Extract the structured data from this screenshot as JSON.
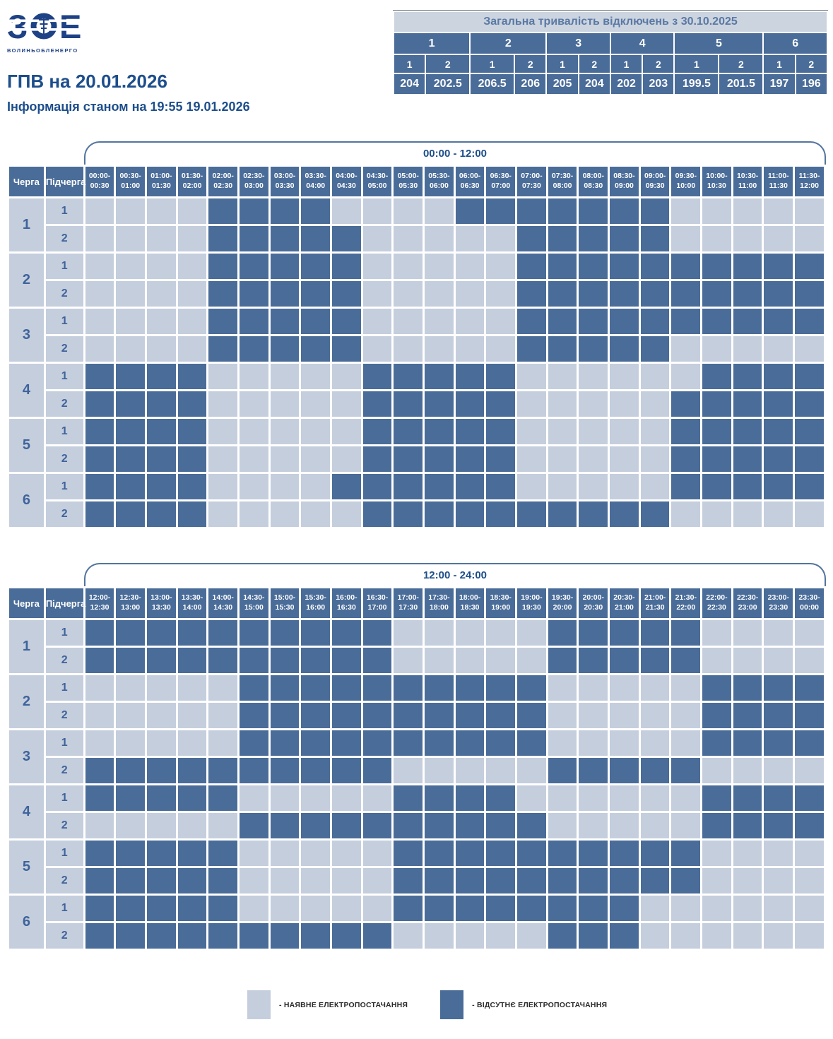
{
  "logo": {
    "acronym": "ЗОЕ",
    "company": "ВОЛИНЬОБЛЕНЕРГО"
  },
  "page": {
    "title": "ГПВ на 20.01.2026",
    "subtitle": "Інформація станом на 19:55 19.01.2026"
  },
  "legend": {
    "available": "- НАЯВНЕ ЕЛЕКТРОПОСТАЧАННЯ",
    "absent": "- ВІДСУТНЄ ЕЛЕКТРОПОСТАЧАННЯ"
  },
  "colors": {
    "power_on": "#c5cedd",
    "power_off": "#4a6c98",
    "header_bg": "#4a6c98",
    "accent_text": "#1d4e89",
    "summary_title_bg": "#ccd4df",
    "summary_title_text": "#5a79a4",
    "logo_blue": "#1e4286"
  },
  "chart_data": [
    {
      "type": "heatmap",
      "title": "00:00 - 12:00",
      "corner": [
        "Черга",
        "Підчерга"
      ],
      "x_labels": [
        "00:00-00:30",
        "00:30-01:00",
        "01:00-01:30",
        "01:30-02:00",
        "02:00-02:30",
        "02:30-03:00",
        "03:00-03:30",
        "03:30-04:00",
        "04:00-04:30",
        "04:30-05:00",
        "05:00-05:30",
        "05:30-06:00",
        "06:00-06:30",
        "06:30-07:00",
        "07:00-07:30",
        "07:30-08:00",
        "08:00-08:30",
        "08:30-09:00",
        "09:00-09:30",
        "09:30-10:00",
        "10:00-10:30",
        "10:30-11:00",
        "11:00-11:30",
        "11:30-12:00"
      ],
      "value_meaning": {
        "0": "наявне електропостачання",
        "1": "відсутнє електропостачання"
      },
      "rows": [
        {
          "queue": "1",
          "subqueue": "1",
          "outage": [
            0,
            0,
            0,
            0,
            1,
            1,
            1,
            1,
            0,
            0,
            0,
            0,
            1,
            1,
            1,
            1,
            1,
            1,
            1,
            0,
            0,
            0,
            0,
            0
          ]
        },
        {
          "queue": "1",
          "subqueue": "2",
          "outage": [
            0,
            0,
            0,
            0,
            1,
            1,
            1,
            1,
            1,
            0,
            0,
            0,
            0,
            0,
            1,
            1,
            1,
            1,
            1,
            0,
            0,
            0,
            0,
            0
          ]
        },
        {
          "queue": "2",
          "subqueue": "1",
          "outage": [
            0,
            0,
            0,
            0,
            1,
            1,
            1,
            1,
            1,
            0,
            0,
            0,
            0,
            0,
            1,
            1,
            1,
            1,
            1,
            1,
            1,
            1,
            1,
            1
          ]
        },
        {
          "queue": "2",
          "subqueue": "2",
          "outage": [
            0,
            0,
            0,
            0,
            1,
            1,
            1,
            1,
            1,
            0,
            0,
            0,
            0,
            0,
            1,
            1,
            1,
            1,
            1,
            1,
            1,
            1,
            1,
            1
          ]
        },
        {
          "queue": "3",
          "subqueue": "1",
          "outage": [
            0,
            0,
            0,
            0,
            1,
            1,
            1,
            1,
            1,
            0,
            0,
            0,
            0,
            0,
            1,
            1,
            1,
            1,
            1,
            1,
            1,
            1,
            1,
            1
          ]
        },
        {
          "queue": "3",
          "subqueue": "2",
          "outage": [
            0,
            0,
            0,
            0,
            1,
            1,
            1,
            1,
            1,
            0,
            0,
            0,
            0,
            0,
            1,
            1,
            1,
            1,
            1,
            0,
            0,
            0,
            0,
            0
          ]
        },
        {
          "queue": "4",
          "subqueue": "1",
          "outage": [
            1,
            1,
            1,
            1,
            0,
            0,
            0,
            0,
            0,
            1,
            1,
            1,
            1,
            1,
            0,
            0,
            0,
            0,
            0,
            0,
            1,
            1,
            1,
            1
          ]
        },
        {
          "queue": "4",
          "subqueue": "2",
          "outage": [
            1,
            1,
            1,
            1,
            0,
            0,
            0,
            0,
            0,
            1,
            1,
            1,
            1,
            1,
            0,
            0,
            0,
            0,
            0,
            1,
            1,
            1,
            1,
            1
          ]
        },
        {
          "queue": "5",
          "subqueue": "1",
          "outage": [
            1,
            1,
            1,
            1,
            0,
            0,
            0,
            0,
            0,
            1,
            1,
            1,
            1,
            1,
            0,
            0,
            0,
            0,
            0,
            1,
            1,
            1,
            1,
            1
          ]
        },
        {
          "queue": "5",
          "subqueue": "2",
          "outage": [
            1,
            1,
            1,
            1,
            0,
            0,
            0,
            0,
            0,
            1,
            1,
            1,
            1,
            1,
            0,
            0,
            0,
            0,
            0,
            1,
            1,
            1,
            1,
            1
          ]
        },
        {
          "queue": "6",
          "subqueue": "1",
          "outage": [
            1,
            1,
            1,
            1,
            0,
            0,
            0,
            0,
            1,
            1,
            1,
            1,
            1,
            1,
            0,
            0,
            0,
            0,
            0,
            1,
            1,
            1,
            1,
            1
          ]
        },
        {
          "queue": "6",
          "subqueue": "2",
          "outage": [
            1,
            1,
            1,
            1,
            0,
            0,
            0,
            0,
            0,
            1,
            1,
            1,
            1,
            1,
            1,
            1,
            1,
            1,
            1,
            0,
            0,
            0,
            0,
            0
          ]
        }
      ]
    },
    {
      "type": "heatmap",
      "title": "12:00 - 24:00",
      "corner": [
        "Черга",
        "Підчерга"
      ],
      "x_labels": [
        "12:00-12:30",
        "12:30-13:00",
        "13:00-13:30",
        "13:30-14:00",
        "14:00-14:30",
        "14:30-15:00",
        "15:00-15:30",
        "15:30-16:00",
        "16:00-16:30",
        "16:30-17:00",
        "17:00-17:30",
        "17:30-18:00",
        "18:00-18:30",
        "18:30-19:00",
        "19:00-19:30",
        "19:30-20:00",
        "20:00-20:30",
        "20:30-21:00",
        "21:00-21:30",
        "21:30-22:00",
        "22:00-22:30",
        "22:30-23:00",
        "23:00-23:30",
        "23:30-00:00"
      ],
      "value_meaning": {
        "0": "наявне електропостачання",
        "1": "відсутнє електропостачання"
      },
      "rows": [
        {
          "queue": "1",
          "subqueue": "1",
          "outage": [
            1,
            1,
            1,
            1,
            1,
            1,
            1,
            1,
            1,
            1,
            0,
            0,
            0,
            0,
            0,
            1,
            1,
            1,
            1,
            1,
            0,
            0,
            0,
            0
          ]
        },
        {
          "queue": "1",
          "subqueue": "2",
          "outage": [
            1,
            1,
            1,
            1,
            1,
            1,
            1,
            1,
            1,
            1,
            0,
            0,
            0,
            0,
            0,
            1,
            1,
            1,
            1,
            1,
            0,
            0,
            0,
            0
          ]
        },
        {
          "queue": "2",
          "subqueue": "1",
          "outage": [
            0,
            0,
            0,
            0,
            0,
            1,
            1,
            1,
            1,
            1,
            1,
            1,
            1,
            1,
            1,
            0,
            0,
            0,
            0,
            0,
            1,
            1,
            1,
            1
          ]
        },
        {
          "queue": "2",
          "subqueue": "2",
          "outage": [
            0,
            0,
            0,
            0,
            0,
            1,
            1,
            1,
            1,
            1,
            1,
            1,
            1,
            1,
            1,
            0,
            0,
            0,
            0,
            0,
            1,
            1,
            1,
            1
          ]
        },
        {
          "queue": "3",
          "subqueue": "1",
          "outage": [
            0,
            0,
            0,
            0,
            0,
            1,
            1,
            1,
            1,
            1,
            1,
            1,
            1,
            1,
            1,
            0,
            0,
            0,
            0,
            0,
            1,
            1,
            1,
            1
          ]
        },
        {
          "queue": "3",
          "subqueue": "2",
          "outage": [
            1,
            1,
            1,
            1,
            1,
            1,
            1,
            1,
            1,
            1,
            0,
            0,
            0,
            0,
            0,
            1,
            1,
            1,
            1,
            1,
            0,
            0,
            0,
            0
          ]
        },
        {
          "queue": "4",
          "subqueue": "1",
          "outage": [
            1,
            1,
            1,
            1,
            1,
            0,
            0,
            0,
            0,
            0,
            1,
            1,
            1,
            1,
            0,
            0,
            0,
            0,
            0,
            0,
            1,
            1,
            1,
            1
          ]
        },
        {
          "queue": "4",
          "subqueue": "2",
          "outage": [
            0,
            0,
            0,
            0,
            0,
            1,
            1,
            1,
            1,
            1,
            1,
            1,
            1,
            1,
            1,
            0,
            0,
            0,
            0,
            0,
            1,
            1,
            1,
            1
          ]
        },
        {
          "queue": "5",
          "subqueue": "1",
          "outage": [
            1,
            1,
            1,
            1,
            1,
            0,
            0,
            0,
            0,
            0,
            1,
            1,
            1,
            1,
            1,
            1,
            1,
            1,
            1,
            1,
            0,
            0,
            0,
            0
          ]
        },
        {
          "queue": "5",
          "subqueue": "2",
          "outage": [
            1,
            1,
            1,
            1,
            1,
            0,
            0,
            0,
            0,
            0,
            1,
            1,
            1,
            1,
            1,
            1,
            1,
            1,
            1,
            1,
            0,
            0,
            0,
            0
          ]
        },
        {
          "queue": "6",
          "subqueue": "1",
          "outage": [
            1,
            1,
            1,
            1,
            1,
            0,
            0,
            0,
            0,
            0,
            1,
            1,
            1,
            1,
            1,
            1,
            1,
            1,
            0,
            0,
            0,
            0,
            0,
            0
          ]
        },
        {
          "queue": "6",
          "subqueue": "2",
          "outage": [
            1,
            1,
            1,
            1,
            1,
            1,
            1,
            1,
            1,
            1,
            0,
            0,
            0,
            0,
            0,
            1,
            1,
            1,
            0,
            0,
            0,
            0,
            0,
            0
          ]
        }
      ]
    },
    {
      "type": "table",
      "title": "Загальна тривалість відключень з 30.10.2025",
      "queues": [
        "1",
        "2",
        "3",
        "4",
        "5",
        "6"
      ],
      "subqueues": [
        "1",
        "2",
        "1",
        "2",
        "1",
        "2",
        "1",
        "2",
        "1",
        "2",
        "1",
        "2"
      ],
      "values": [
        "204",
        "202.5",
        "206.5",
        "206",
        "205",
        "204",
        "202",
        "203",
        "199.5",
        "201.5",
        "197",
        "196"
      ]
    }
  ]
}
